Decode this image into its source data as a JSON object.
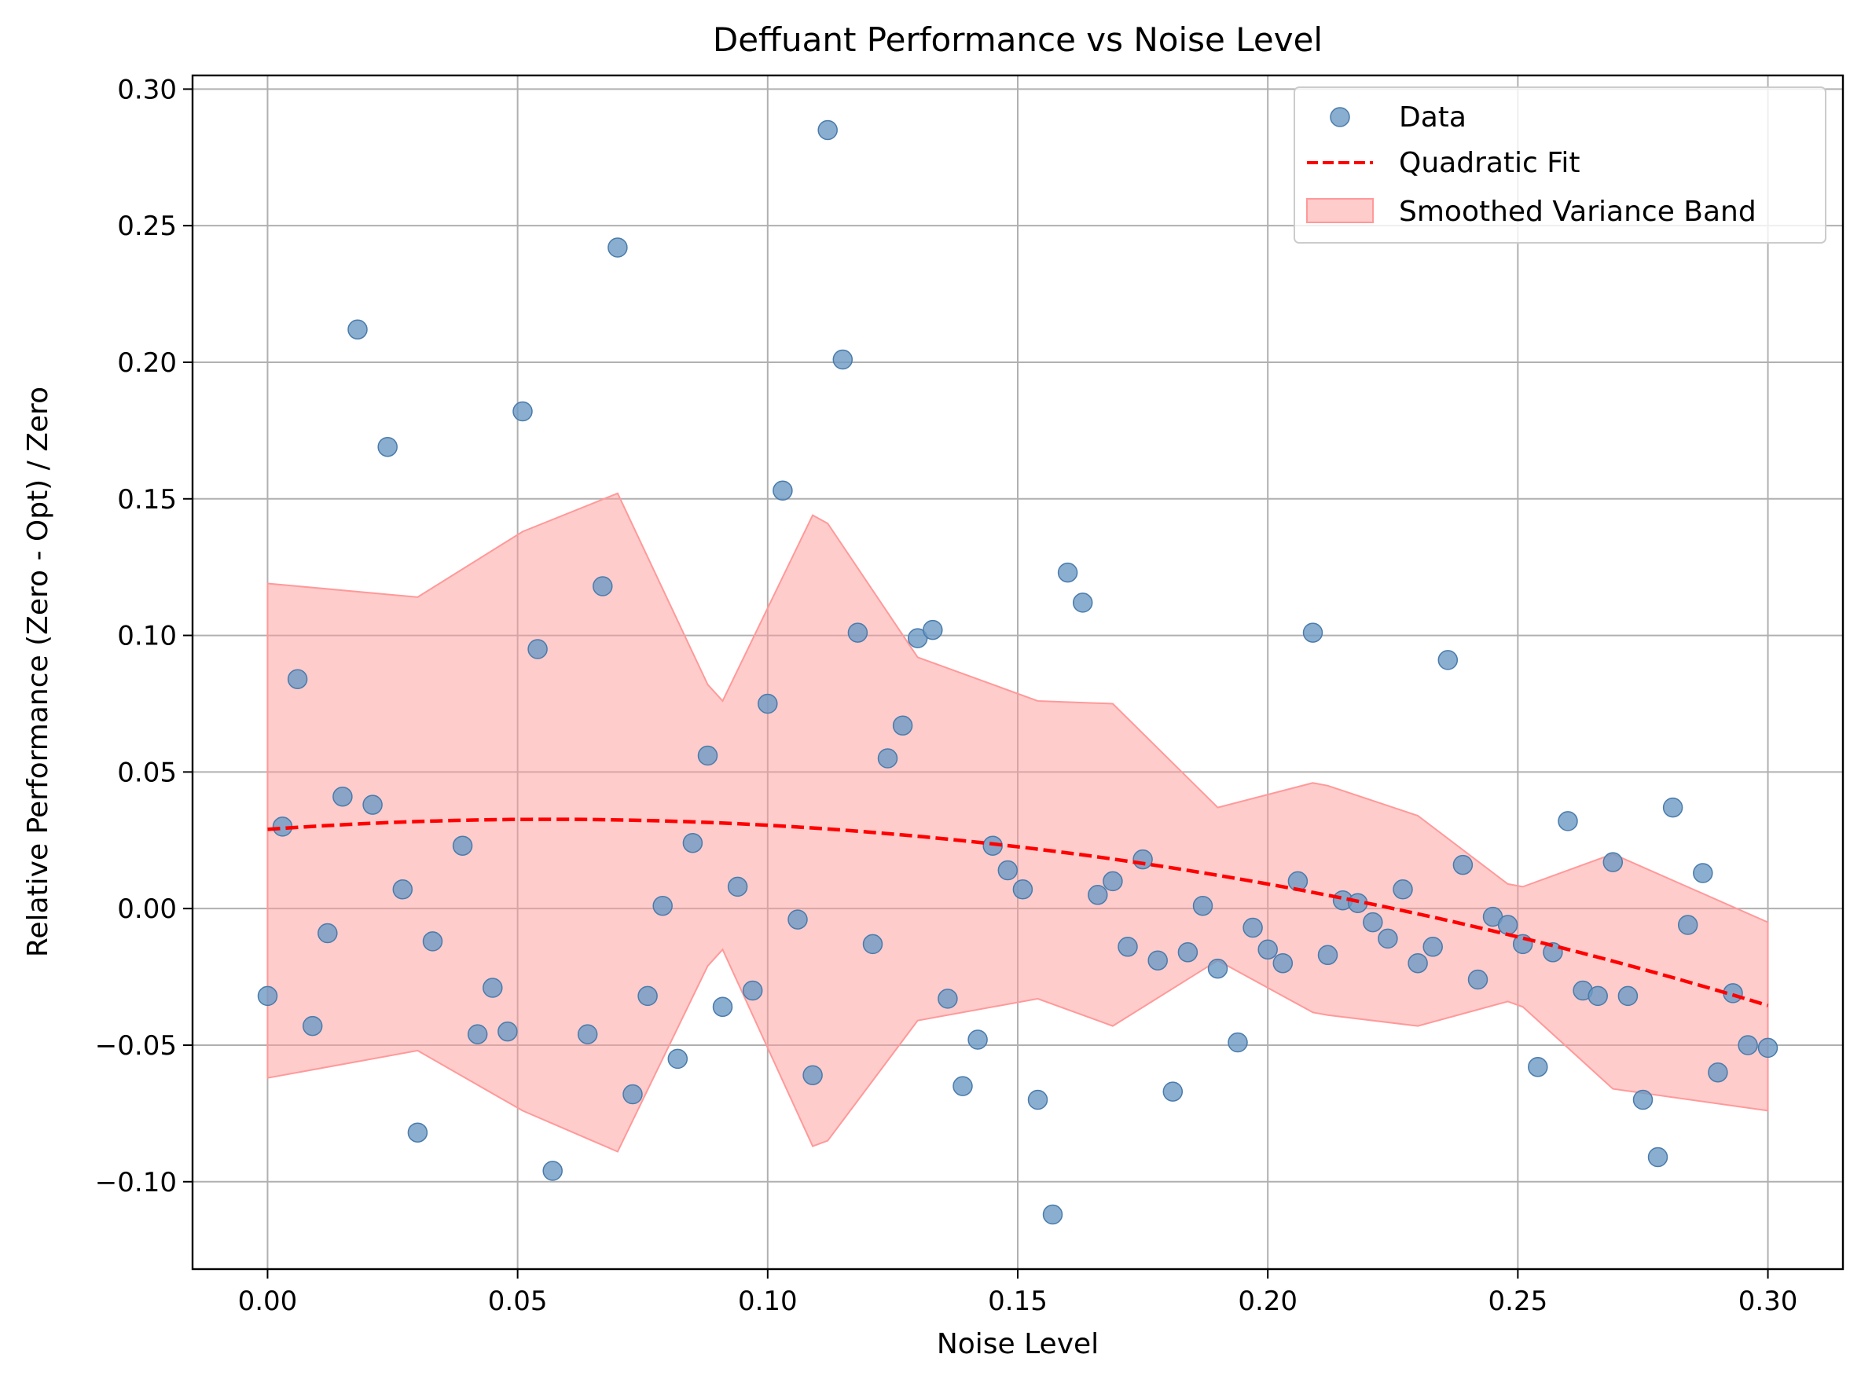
{
  "chart_data": {
    "type": "scatter",
    "title": "Deffuant Performance vs Noise Level",
    "xlabel": "Noise Level",
    "ylabel": "Relative Performance (Zero - Opt) / Zero",
    "xlim": [
      -0.015,
      0.315
    ],
    "ylim": [
      -0.132,
      0.305
    ],
    "x_ticks": [
      0.0,
      0.05,
      0.1,
      0.15,
      0.2,
      0.25,
      0.3
    ],
    "x_tick_labels": [
      "0.00",
      "0.05",
      "0.10",
      "0.15",
      "0.20",
      "0.25",
      "0.30"
    ],
    "y_ticks": [
      -0.1,
      -0.05,
      0.0,
      0.05,
      0.1,
      0.15,
      0.2,
      0.25,
      0.3
    ],
    "y_tick_labels": [
      "−0.10",
      "−0.05",
      "0.00",
      "0.05",
      "0.10",
      "0.15",
      "0.20",
      "0.25",
      "0.30"
    ],
    "grid": true,
    "legend_position": "top-right",
    "colors": {
      "data": "#6b9ac4",
      "fit": "#ff0000",
      "band": "#ff9999"
    },
    "series": [
      {
        "name": "Data",
        "type": "scatter",
        "x": [
          0.0,
          0.003,
          0.006,
          0.009,
          0.012,
          0.015,
          0.018,
          0.021,
          0.024,
          0.027,
          0.03,
          0.033,
          0.039,
          0.042,
          0.045,
          0.048,
          0.051,
          0.054,
          0.057,
          0.064,
          0.067,
          0.07,
          0.073,
          0.076,
          0.079,
          0.082,
          0.085,
          0.088,
          0.091,
          0.094,
          0.097,
          0.1,
          0.103,
          0.106,
          0.109,
          0.112,
          0.115,
          0.118,
          0.121,
          0.124,
          0.127,
          0.13,
          0.133,
          0.136,
          0.139,
          0.142,
          0.145,
          0.148,
          0.151,
          0.154,
          0.157,
          0.16,
          0.163,
          0.166,
          0.169,
          0.172,
          0.175,
          0.178,
          0.181,
          0.184,
          0.187,
          0.19,
          0.194,
          0.197,
          0.2,
          0.203,
          0.206,
          0.209,
          0.212,
          0.215,
          0.218,
          0.221,
          0.224,
          0.227,
          0.23,
          0.233,
          0.236,
          0.239,
          0.242,
          0.245,
          0.248,
          0.251,
          0.254,
          0.257,
          0.26,
          0.263,
          0.266,
          0.269,
          0.272,
          0.275,
          0.278,
          0.281,
          0.284,
          0.287,
          0.29,
          0.293,
          0.296,
          0.3
        ],
        "y": [
          -0.032,
          0.03,
          0.084,
          -0.043,
          -0.009,
          0.041,
          0.212,
          0.038,
          0.169,
          0.007,
          -0.082,
          -0.012,
          0.023,
          -0.046,
          -0.029,
          -0.045,
          0.182,
          0.095,
          -0.096,
          -0.046,
          0.118,
          0.242,
          -0.068,
          -0.032,
          0.001,
          -0.055,
          0.024,
          0.056,
          -0.036,
          0.008,
          -0.03,
          0.075,
          0.153,
          -0.004,
          -0.061,
          0.285,
          0.201,
          0.101,
          -0.013,
          0.055,
          0.067,
          0.099,
          0.102,
          -0.033,
          -0.065,
          -0.048,
          0.023,
          0.014,
          0.007,
          -0.07,
          -0.112,
          0.123,
          0.112,
          0.005,
          0.01,
          -0.014,
          0.018,
          -0.019,
          -0.067,
          -0.016,
          0.001,
          -0.022,
          -0.049,
          -0.007,
          -0.015,
          -0.02,
          0.01,
          0.101,
          -0.017,
          0.003,
          0.002,
          -0.005,
          -0.011,
          0.007,
          -0.02,
          -0.014,
          0.091,
          0.016,
          -0.026,
          -0.003,
          -0.006,
          -0.013,
          -0.058,
          -0.016,
          0.032,
          -0.03,
          -0.032,
          0.017,
          -0.032,
          -0.07,
          -0.091,
          0.037,
          -0.006,
          0.013,
          -0.06,
          -0.031,
          -0.05,
          -0.051
        ]
      },
      {
        "name": "Quadratic Fit",
        "type": "line",
        "style": "dashed",
        "coefficients": {
          "a": -1.15,
          "b": 0.13,
          "c": 0.029
        },
        "x_range": [
          0.0,
          0.3
        ]
      },
      {
        "name": "Smoothed Variance Band",
        "type": "area",
        "x": [
          0.0,
          0.03,
          0.051,
          0.07,
          0.088,
          0.091,
          0.109,
          0.112,
          0.13,
          0.154,
          0.169,
          0.19,
          0.209,
          0.212,
          0.23,
          0.248,
          0.251,
          0.269,
          0.3
        ],
        "upper": [
          0.119,
          0.114,
          0.138,
          0.152,
          0.082,
          0.076,
          0.144,
          0.141,
          0.092,
          0.076,
          0.075,
          0.037,
          0.046,
          0.045,
          0.034,
          0.009,
          0.008,
          0.02,
          -0.005
        ],
        "lower": [
          -0.062,
          -0.052,
          -0.074,
          -0.089,
          -0.021,
          -0.015,
          -0.087,
          -0.085,
          -0.041,
          -0.033,
          -0.043,
          -0.019,
          -0.038,
          -0.039,
          -0.043,
          -0.034,
          -0.036,
          -0.066,
          -0.074
        ]
      }
    ]
  }
}
